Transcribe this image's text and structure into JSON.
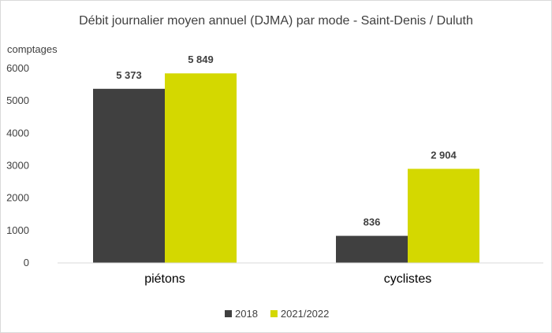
{
  "chart_data": {
    "type": "bar",
    "title": "Débit journalier moyen annuel (DJMA) par mode - Saint-Denis / Duluth",
    "ylabel": "comptages",
    "xlabel": "",
    "categories": [
      "piétons",
      "cyclistes"
    ],
    "series": [
      {
        "name": "2018",
        "values": [
          5373,
          836
        ],
        "labels": [
          "5 373",
          "836"
        ],
        "color": "#404040"
      },
      {
        "name": "2021/2022",
        "values": [
          5849,
          2904
        ],
        "labels": [
          "5 849",
          "2 904"
        ],
        "color": "#d4d800"
      }
    ],
    "ylim": [
      0,
      6000
    ],
    "yticks": [
      0,
      1000,
      2000,
      3000,
      4000,
      5000,
      6000
    ],
    "grid": false,
    "legend_position": "bottom"
  }
}
